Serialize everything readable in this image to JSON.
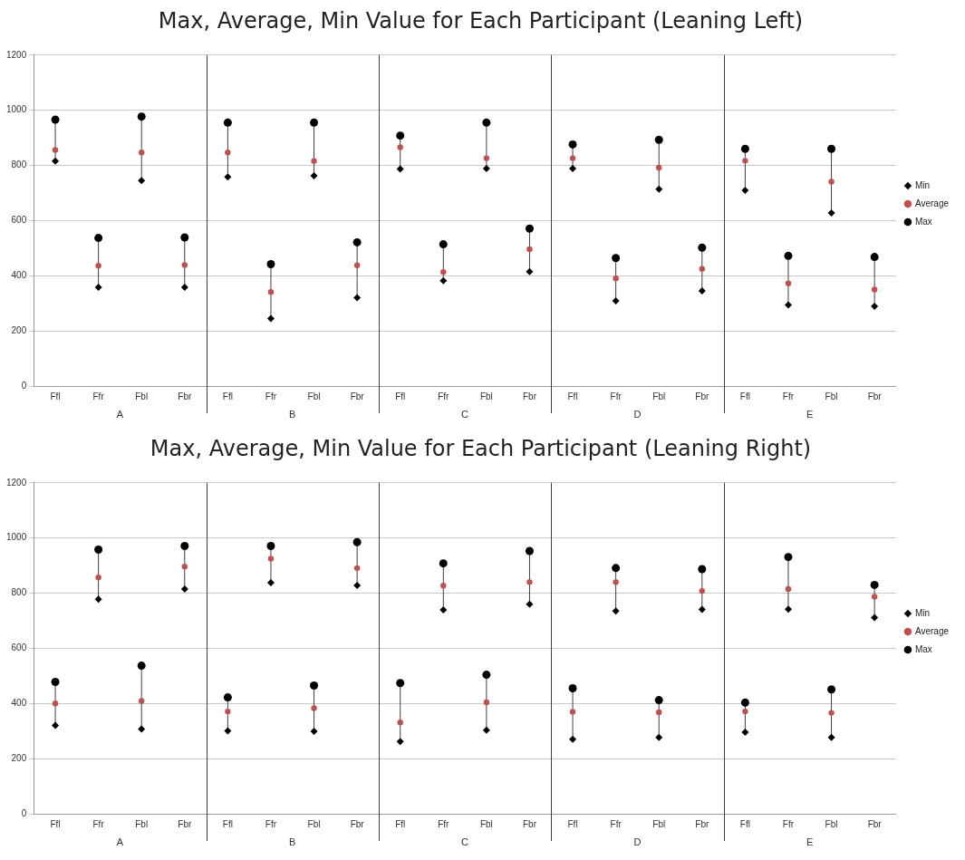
{
  "chart_data": [
    {
      "type": "scatter",
      "title": "Max, Average, Min Value for Each Participant (Leaning Left)",
      "categories": [
        "Ffl",
        "Ffr",
        "Fbl",
        "Fbr",
        "Ffl",
        "Ffr",
        "Fbl",
        "Fbr",
        "Ffl",
        "Ffr",
        "Fbl",
        "Fbr",
        "Ffl",
        "Ffr",
        "Fbl",
        "Fbr",
        "Ffl",
        "Ffr",
        "Fbl",
        "Fbr"
      ],
      "series": [
        {
          "name": "Min",
          "color": "#000000",
          "marker": "diamond",
          "values": [
            816,
            358,
            745,
            358,
            758,
            245,
            762,
            320,
            787,
            382,
            789,
            415,
            789,
            309,
            714,
            345,
            710,
            294,
            628,
            289
          ]
        },
        {
          "name": "Average",
          "color": "#c0504d",
          "marker": "circle",
          "values": [
            856,
            436,
            847,
            439,
            847,
            341,
            816,
            438,
            866,
            413,
            826,
            496,
            826,
            390,
            792,
            425,
            817,
            372,
            741,
            350
          ]
        },
        {
          "name": "Max",
          "color": "#000000",
          "marker": "circle",
          "values": [
            966,
            537,
            977,
            539,
            955,
            442,
            955,
            521,
            908,
            514,
            955,
            571,
            876,
            464,
            893,
            502,
            860,
            472,
            860,
            468
          ]
        }
      ],
      "annotations": [
        "A",
        "B",
        "C",
        "D",
        "E"
      ],
      "ylim": [
        0,
        1200
      ],
      "yticks": [
        0,
        200,
        400,
        600,
        800,
        1000,
        1200
      ],
      "grid": "y",
      "legend": "right"
    },
    {
      "type": "scatter",
      "title": "Max, Average, Min Value for Each Participant (Leaning Right)",
      "categories": [
        "Ffl",
        "Ffr",
        "Fbl",
        "Fbr",
        "Ffl",
        "Ffr",
        "Fbl",
        "Fbr",
        "Ffl",
        "Ffr",
        "Fbl",
        "Fbr",
        "Ffl",
        "Ffr",
        "Fbl",
        "Fbr",
        "Ffl",
        "Ffr",
        "Fbl",
        "Fbr"
      ],
      "series": [
        {
          "name": "Min",
          "color": "#000000",
          "marker": "diamond",
          "values": [
            320,
            778,
            307,
            815,
            301,
            838,
            299,
            828,
            262,
            739,
            303,
            760,
            270,
            735,
            277,
            741,
            296,
            742,
            277,
            711
          ]
        },
        {
          "name": "Average",
          "color": "#c0504d",
          "marker": "circle",
          "values": [
            400,
            857,
            409,
            896,
            371,
            925,
            383,
            891,
            331,
            827,
            404,
            840,
            370,
            840,
            368,
            808,
            371,
            815,
            366,
            787
          ]
        },
        {
          "name": "Max",
          "color": "#000000",
          "marker": "circle",
          "values": [
            478,
            958,
            537,
            971,
            422,
            971,
            465,
            985,
            474,
            908,
            504,
            953,
            455,
            891,
            412,
            887,
            403,
            931,
            451,
            830
          ]
        }
      ],
      "annotations": [
        "A",
        "B",
        "C",
        "D",
        "E"
      ],
      "ylim": [
        0,
        1200
      ],
      "yticks": [
        0,
        200,
        400,
        600,
        800,
        1000,
        1200
      ],
      "grid": "y",
      "legend": "right"
    }
  ]
}
